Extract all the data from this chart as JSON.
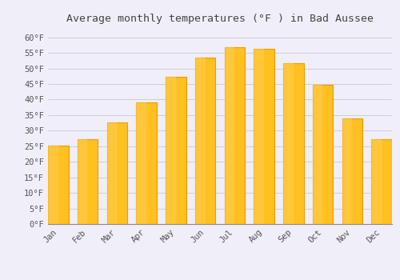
{
  "title": "Average monthly temperatures (°F ) in Bad Aussee",
  "months": [
    "Jan",
    "Feb",
    "Mar",
    "Apr",
    "May",
    "Jun",
    "Jul",
    "Aug",
    "Sep",
    "Oct",
    "Nov",
    "Dec"
  ],
  "values": [
    25.2,
    27.3,
    32.7,
    39.2,
    47.3,
    53.4,
    56.8,
    56.3,
    51.8,
    44.8,
    34.0,
    27.3
  ],
  "bar_color_top": "#FFC835",
  "bar_color_bottom": "#F5A800",
  "bar_edge_color": "#E8A000",
  "background_color": "#F0EEF8",
  "plot_bg_color": "#F0EEF8",
  "grid_color": "#CCCCDD",
  "title_fontsize": 9.5,
  "tick_fontsize": 7.5,
  "ylim": [
    0,
    63
  ],
  "yticks": [
    0,
    5,
    10,
    15,
    20,
    25,
    30,
    35,
    40,
    45,
    50,
    55,
    60
  ]
}
